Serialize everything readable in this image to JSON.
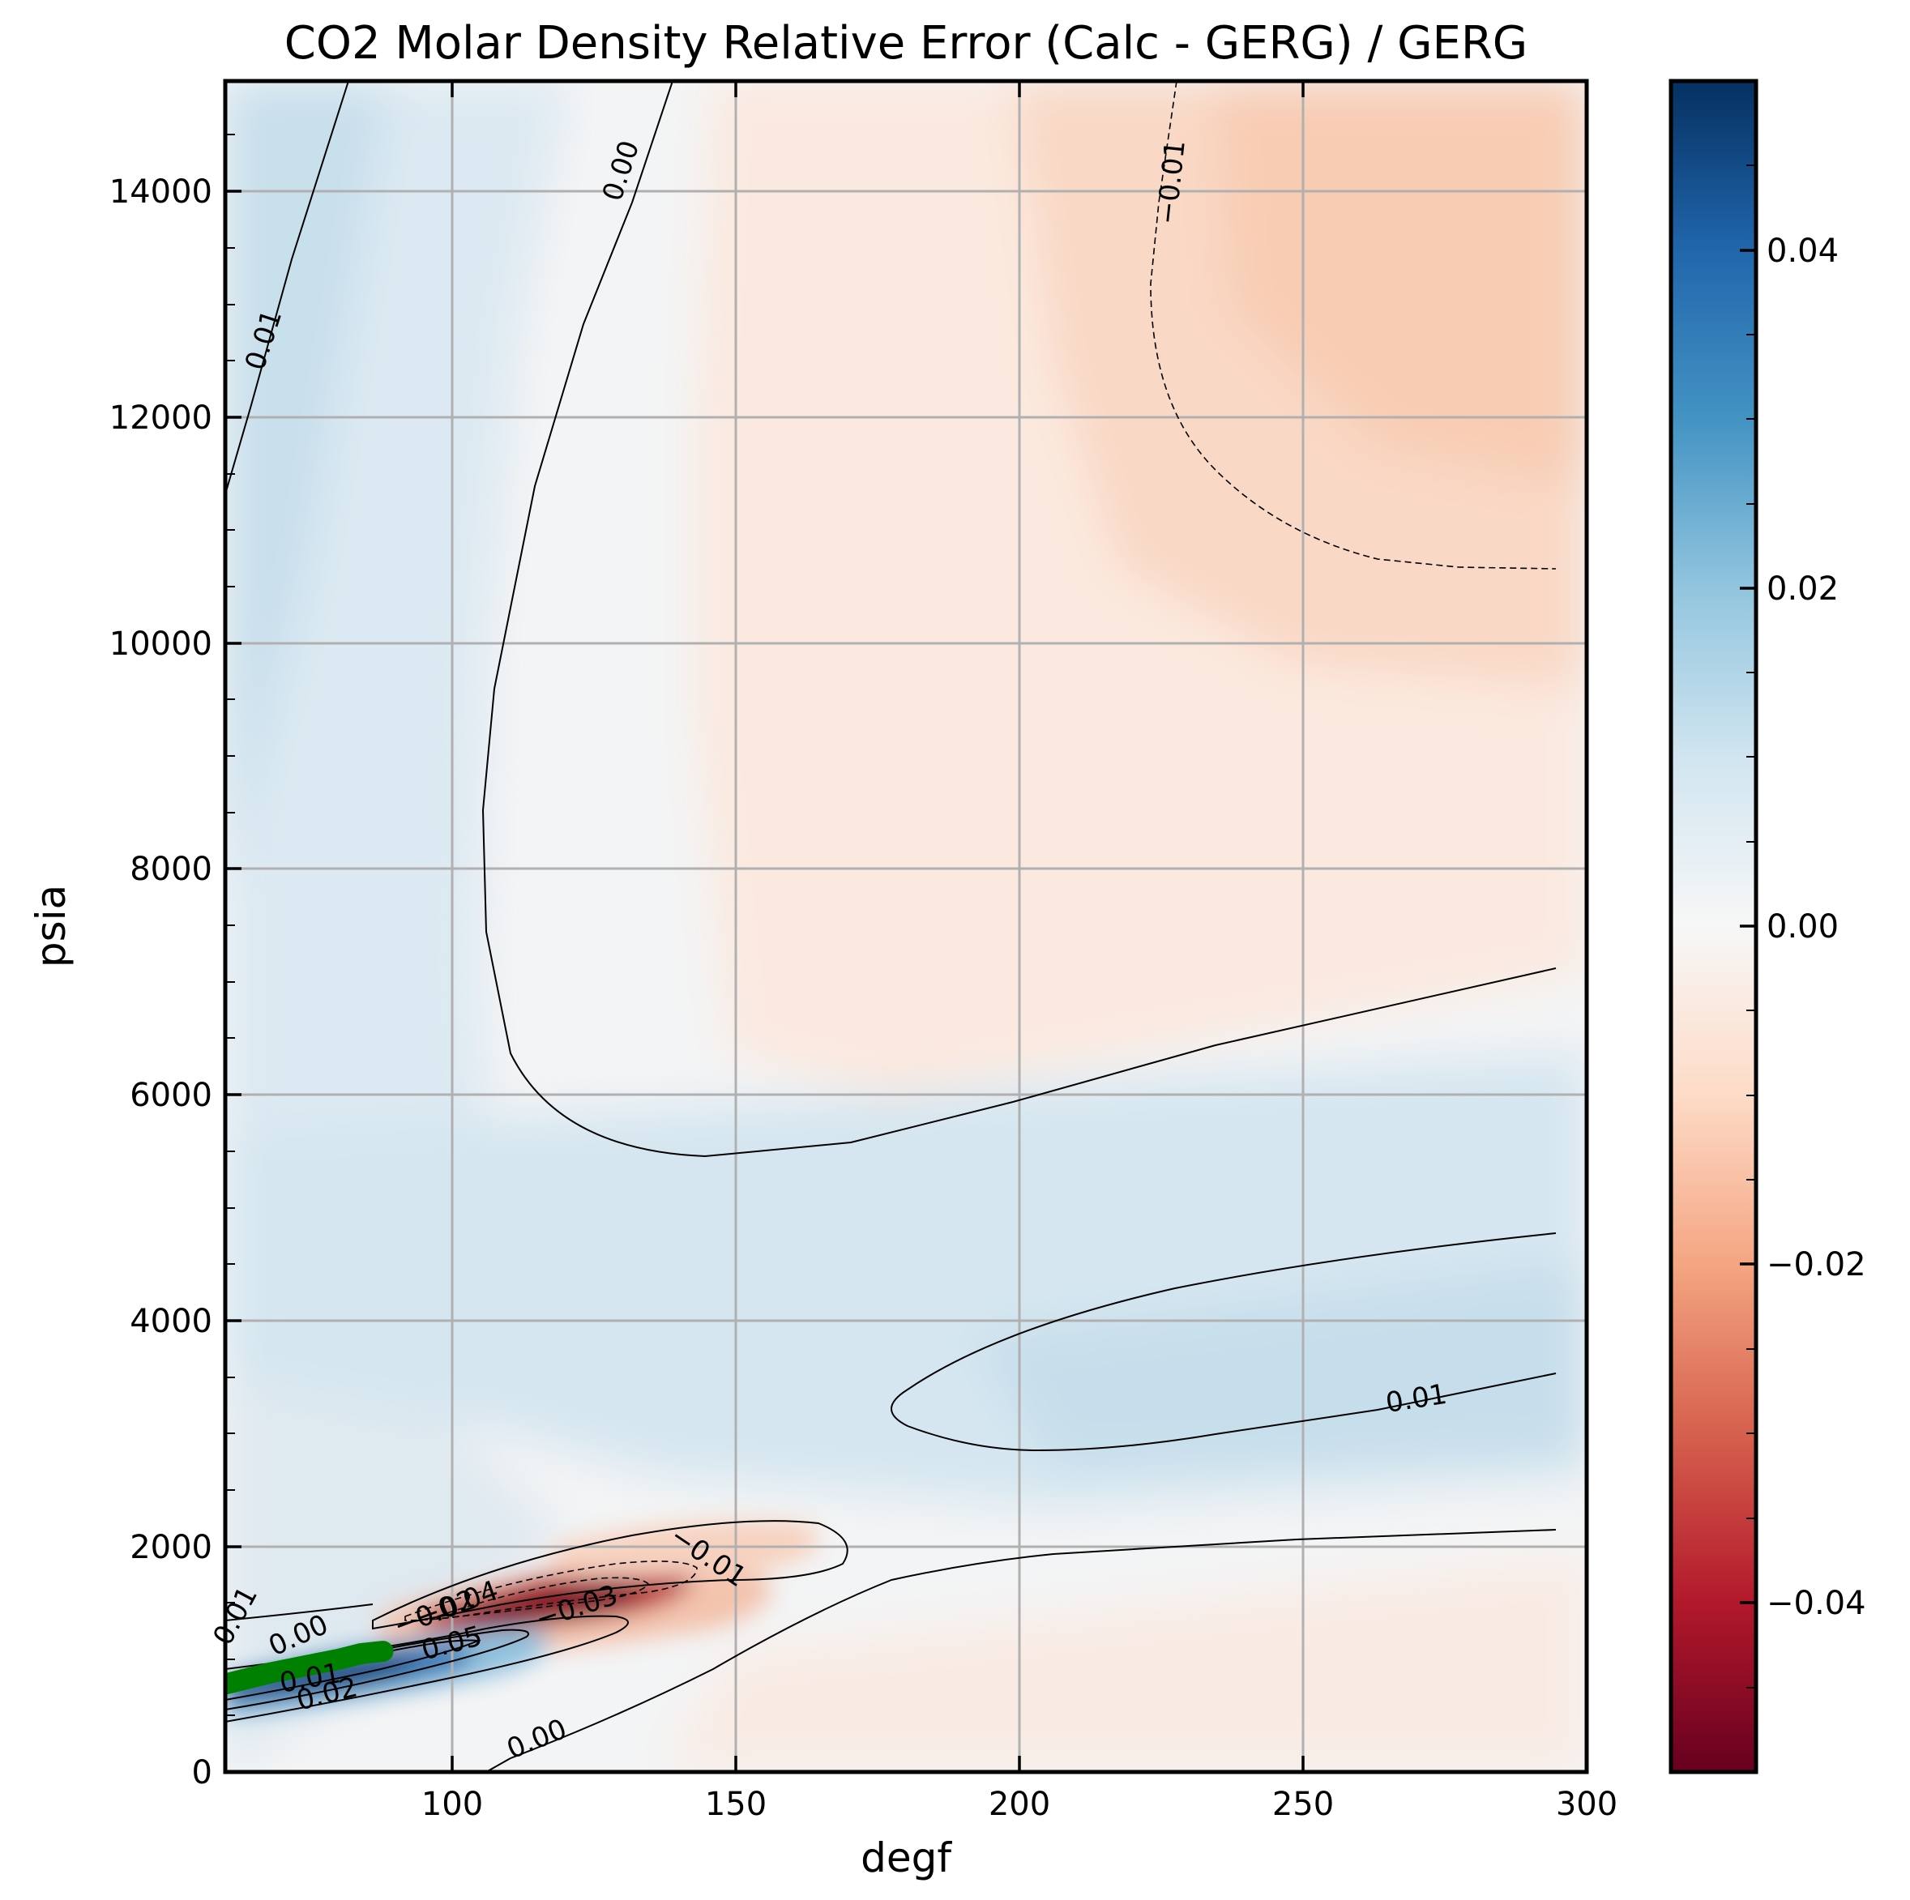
{
  "chart_data": {
    "type": "heatmap",
    "title": "CO2 Molar Density Relative Error (Calc - GERG) / GERG",
    "xlabel": "degf",
    "ylabel": "psia",
    "xlim": [
      60,
      300
    ],
    "ylim": [
      0,
      15000
    ],
    "xticks": [
      100,
      150,
      200,
      250,
      300
    ],
    "yticks": [
      0,
      2000,
      4000,
      6000,
      8000,
      10000,
      12000,
      14000
    ],
    "grid": true,
    "colormap": "RdBu",
    "colorbar": {
      "vmin": -0.05,
      "vmax": 0.05,
      "ticks": [
        -0.04,
        -0.02,
        0.0,
        0.02,
        0.04
      ],
      "tick_labels": [
        "−0.04",
        "−0.02",
        "0.00",
        "0.02",
        "0.04"
      ]
    },
    "contour_levels": [
      -0.05,
      -0.04,
      -0.03,
      -0.02,
      -0.01,
      0.0,
      0.01,
      0.02,
      0.03,
      0.04,
      0.05
    ],
    "contour_labels": [
      {
        "text": "0.01",
        "x": 67,
        "y": 12700,
        "angle": -72
      },
      {
        "text": "0.00",
        "x": 130,
        "y": 14200,
        "angle": -72
      },
      {
        "text": "−0.01",
        "x": 227,
        "y": 14100,
        "angle": -84
      },
      {
        "text": "0.01",
        "x": 270,
        "y": 3300,
        "angle": -9
      },
      {
        "text": "−0.01",
        "x": 145,
        "y": 1900,
        "angle": 34
      },
      {
        "text": "0.00",
        "x": 73,
        "y": 1200,
        "angle": -24
      },
      {
        "text": "−0.03",
        "x": 122,
        "y": 1450,
        "angle": -18
      },
      {
        "text": "−0.04",
        "x": 101,
        "y": 1480,
        "angle": -20
      },
      {
        "text": "−0.02",
        "x": 97,
        "y": 1400,
        "angle": -20
      },
      {
        "text": "0.05",
        "x": 100,
        "y": 1130,
        "angle": -15
      },
      {
        "text": "0.01",
        "x": 75,
        "y": 820,
        "angle": -10
      },
      {
        "text": "0.01",
        "x": 62,
        "y": 1380,
        "angle": -62
      },
      {
        "text": "0.02",
        "x": 78,
        "y": 680,
        "angle": -14
      },
      {
        "text": "0.00",
        "x": 115,
        "y": 280,
        "angle": -22
      }
    ],
    "saturation_curve": {
      "color": "#008000",
      "x": [
        60,
        64,
        68,
        72,
        76,
        80,
        84,
        87.8
      ],
      "y": [
        780,
        830,
        880,
        920,
        960,
        1000,
        1050,
        1070
      ]
    }
  }
}
